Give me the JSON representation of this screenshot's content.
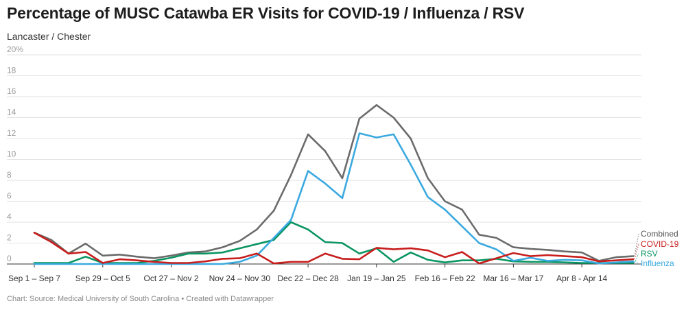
{
  "title": "Percentage of MUSC Catawba ER Visits for COVID-19 / Influenza / RSV",
  "subtitle": "Lancaster / Chester",
  "footer": "Chart: Source: Medical University of South Carolina • Created with Datawrapper",
  "chart_data": {
    "type": "line",
    "title": "Percentage of MUSC Catawba ER Visits for COVID-19 / Influenza / RSV",
    "subtitle": "Lancaster / Chester",
    "xlabel": "",
    "ylabel": "",
    "ylim": [
      0,
      20
    ],
    "y_ticks": [
      "0",
      "2",
      "4",
      "6",
      "8",
      "10",
      "12",
      "14",
      "16",
      "18",
      "20%"
    ],
    "x_tick_labels": [
      "Sep 1 – Sep 7",
      "Sep 29 – Oct 5",
      "Oct 27 – Nov 2",
      "Nov 24 – Nov 30",
      "Dec 22 – Dec 28",
      "Jan 19 – Jan 25",
      "Feb 16 – Feb 22",
      "Mar 16 – Mar 17",
      "Apr 8 - Apr 14"
    ],
    "grid": true,
    "legend": "direct labels at right end",
    "n_weeks": 36,
    "series": [
      {
        "name": "Combined",
        "color": "#6b6b6b",
        "values": [
          3.0,
          2.3,
          1.0,
          1.95,
          0.8,
          0.9,
          0.7,
          0.55,
          0.8,
          1.1,
          1.2,
          1.6,
          2.2,
          3.3,
          5.1,
          8.5,
          12.4,
          10.8,
          8.2,
          13.9,
          15.2,
          14.0,
          12.0,
          8.2,
          6.0,
          5.2,
          2.8,
          2.5,
          1.6,
          1.45,
          1.35,
          1.2,
          1.1,
          0.3,
          0.65,
          0.75
        ]
      },
      {
        "name": "COVID-19",
        "color": "#c71e1d",
        "values": [
          3.0,
          2.1,
          1.0,
          1.15,
          0.1,
          0.45,
          0.35,
          0.2,
          0.1,
          0.1,
          0.25,
          0.5,
          0.55,
          1.0,
          0.05,
          0.2,
          0.2,
          1.0,
          0.5,
          0.45,
          1.55,
          1.4,
          1.5,
          1.3,
          0.65,
          1.15,
          0.05,
          0.55,
          1.05,
          0.75,
          0.85,
          0.75,
          0.65,
          0.25,
          0.35,
          0.45
        ]
      },
      {
        "name": "RSV",
        "color": "#0a9562",
        "values": [
          0.1,
          0.1,
          0.1,
          0.7,
          0.1,
          0.1,
          0.1,
          0.3,
          0.6,
          1.0,
          1.0,
          1.1,
          1.5,
          1.9,
          2.3,
          4.0,
          3.3,
          2.1,
          2.0,
          1.0,
          1.5,
          0.2,
          1.1,
          0.4,
          0.15,
          0.35,
          0.35,
          0.5,
          0.25,
          0.2,
          0.2,
          0.15,
          0.1,
          0.1,
          0.1,
          0.1
        ]
      },
      {
        "name": "Influenza",
        "color": "#3aa9e0",
        "values": [
          0.0,
          0.0,
          0.0,
          0.0,
          0.0,
          0.0,
          0.0,
          0.0,
          0.0,
          0.0,
          0.0,
          0.0,
          0.2,
          0.8,
          2.5,
          4.2,
          8.9,
          7.7,
          6.3,
          12.5,
          12.1,
          12.4,
          9.5,
          6.4,
          5.2,
          3.6,
          2.0,
          1.4,
          0.3,
          0.6,
          0.3,
          0.4,
          0.35,
          0.05,
          0.15,
          0.25
        ]
      }
    ]
  }
}
